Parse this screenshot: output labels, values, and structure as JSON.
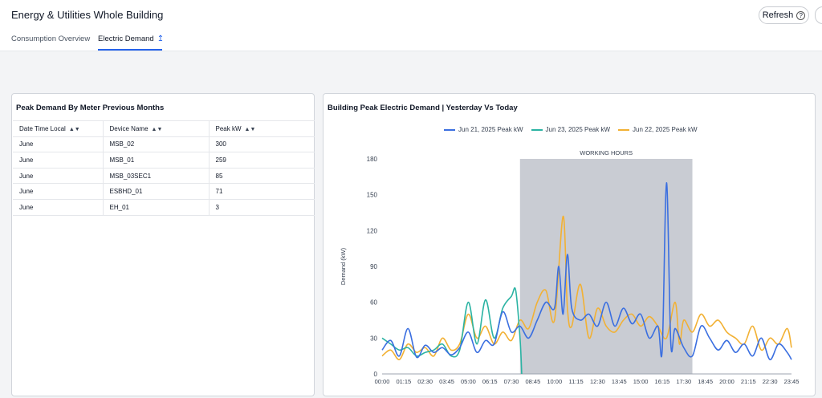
{
  "header": {
    "title": "Energy & Utilities Whole Building",
    "refresh_label": "Refresh"
  },
  "tabs": [
    {
      "label": "Consumption Overview"
    },
    {
      "label": "Electric Demand"
    }
  ],
  "icons": {
    "help": "help-circle-icon",
    "upload": "upload-icon",
    "sort": "sort-icon"
  },
  "left_card": {
    "title": "Peak Demand By Meter Previous Months",
    "columns": [
      "Date Time Local",
      "Device Name",
      "Peak kW"
    ],
    "rows": [
      [
        "June",
        "MSB_02",
        "300"
      ],
      [
        "June",
        "MSB_01",
        "259"
      ],
      [
        "June",
        "MSB_03SEC1",
        "85"
      ],
      [
        "June",
        "ESBHD_01",
        "71"
      ],
      [
        "June",
        "EH_01",
        "3"
      ]
    ]
  },
  "right_card": {
    "title": "Building Peak Electric Demand | Yesterday Vs Today"
  },
  "chart_data": {
    "type": "line",
    "ylabel": "Demand (kW)",
    "ylim": [
      0,
      180
    ],
    "yticks": [
      0,
      30,
      60,
      90,
      120,
      150,
      180
    ],
    "xticks": [
      "00:00",
      "01:15",
      "02:30",
      "03:45",
      "05:00",
      "06:15",
      "07:30",
      "08:45",
      "10:00",
      "11:15",
      "12:30",
      "13:45",
      "15:00",
      "16:15",
      "17:30",
      "18:45",
      "20:00",
      "21:15",
      "22:30",
      "23:45"
    ],
    "annotation": {
      "label": "WORKING HOURS",
      "from_hour": 8.0,
      "to_hour": 18.0
    },
    "series": [
      {
        "name": "Jun 21, 2025 Peak kW",
        "color": "#3b6fe0",
        "x": [
          0,
          0.5,
          1,
          1.5,
          2,
          2.5,
          3,
          3.5,
          4,
          4.5,
          5,
          5.5,
          6,
          6.5,
          7,
          7.5,
          8,
          8.5,
          9,
          9.5,
          10,
          10.25,
          10.5,
          10.75,
          11,
          11.5,
          12,
          12.5,
          13,
          13.5,
          14,
          14.5,
          15,
          15.5,
          16,
          16.25,
          16.5,
          16.75,
          17,
          17.5,
          18,
          18.5,
          19,
          19.5,
          20,
          20.5,
          21,
          21.5,
          22,
          22.5,
          23,
          23.5,
          23.75
        ],
        "y": [
          20,
          28,
          15,
          38,
          14,
          24,
          18,
          22,
          16,
          22,
          35,
          18,
          28,
          25,
          52,
          35,
          40,
          30,
          45,
          60,
          55,
          90,
          50,
          100,
          55,
          45,
          50,
          40,
          60,
          40,
          55,
          42,
          50,
          30,
          40,
          20,
          160,
          25,
          38,
          22,
          15,
          40,
          30,
          20,
          28,
          18,
          25,
          15,
          30,
          12,
          25,
          18,
          12
        ]
      },
      {
        "name": "Jun 23, 2025 Peak kW",
        "color": "#2bb3a3",
        "x": [
          0,
          0.5,
          1,
          1.5,
          2,
          2.5,
          3,
          3.5,
          4,
          4.5,
          5,
          5.5,
          6,
          6.5,
          7,
          7.5,
          7.75,
          8,
          8.1
        ],
        "y": [
          30,
          25,
          20,
          22,
          15,
          18,
          20,
          25,
          15,
          20,
          60,
          25,
          62,
          30,
          55,
          65,
          70,
          30,
          0
        ]
      },
      {
        "name": "Jun 22, 2025 Peak kW",
        "color": "#f2b134",
        "x": [
          0,
          0.5,
          1,
          1.5,
          2,
          2.5,
          3,
          3.5,
          4,
          4.5,
          5,
          5.5,
          6,
          6.5,
          7,
          7.5,
          8,
          8.5,
          9,
          9.5,
          10,
          10.5,
          10.75,
          11,
          11.5,
          12,
          12.5,
          13,
          13.5,
          14,
          14.5,
          15,
          15.5,
          16,
          16.5,
          17,
          17.25,
          17.5,
          18,
          18.5,
          19,
          19.5,
          20,
          20.5,
          21,
          21.5,
          22,
          22.5,
          23,
          23.5,
          23.75
        ],
        "y": [
          15,
          20,
          12,
          25,
          18,
          22,
          15,
          30,
          20,
          25,
          50,
          30,
          40,
          25,
          35,
          28,
          45,
          38,
          60,
          70,
          45,
          132,
          55,
          40,
          75,
          30,
          55,
          40,
          35,
          45,
          50,
          40,
          48,
          40,
          30,
          60,
          25,
          45,
          35,
          50,
          40,
          45,
          35,
          30,
          25,
          40,
          20,
          30,
          25,
          38,
          22
        ]
      }
    ]
  }
}
